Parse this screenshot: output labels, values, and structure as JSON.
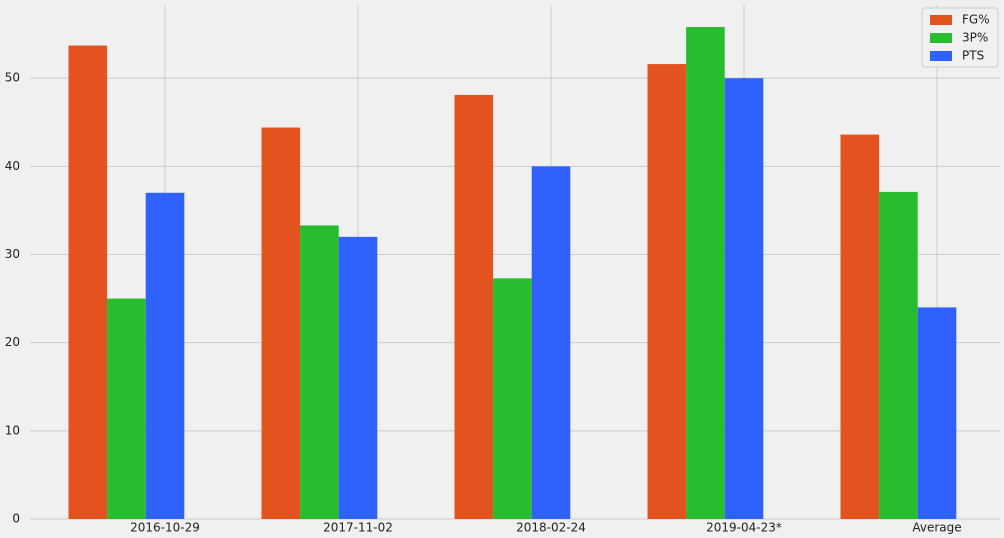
{
  "chart_data": {
    "type": "bar",
    "categories": [
      "2016-10-29",
      "2017-11-02",
      "2018-02-24",
      "2019-04-23*",
      "Average"
    ],
    "series": [
      {
        "name": "FG%",
        "color": "#e3531f",
        "values": [
          53.7,
          44.4,
          48.1,
          51.6,
          43.6
        ]
      },
      {
        "name": "3P%",
        "color": "#27bd2e",
        "values": [
          25.0,
          33.3,
          27.3,
          55.8,
          37.1
        ]
      },
      {
        "name": "PTS",
        "color": "#2f62fc",
        "values": [
          37,
          32,
          40,
          50,
          24
        ]
      }
    ],
    "ylim": [
      0,
      58.3
    ],
    "yticks": [
      0,
      10,
      20,
      30,
      40,
      50
    ],
    "grid": true,
    "legend": "upper right"
  }
}
